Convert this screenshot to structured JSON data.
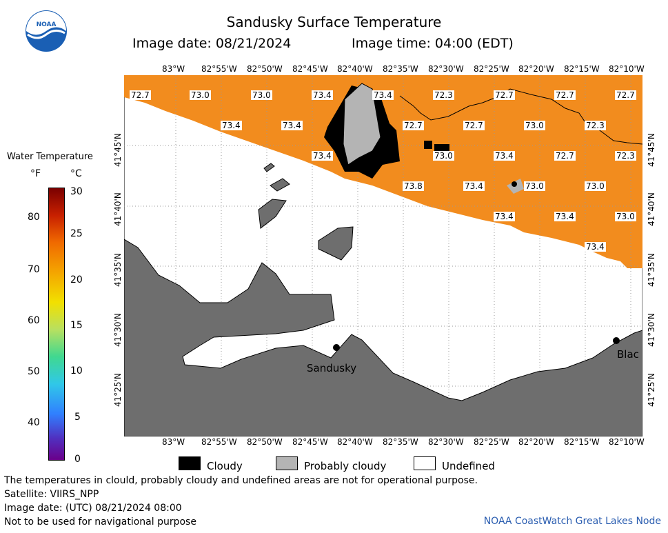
{
  "title": "Sandusky Surface Temperature",
  "image_date_label": "Image date: 08/21/2024",
  "image_time_label": "Image time: 04:00 (EDT)",
  "logo_text": "NOAA",
  "colorbar": {
    "title": "Water Temperature",
    "unit_f": "°F",
    "unit_c": "°C",
    "f_ticks": [
      "80",
      "70",
      "60",
      "50",
      "40"
    ],
    "c_ticks": [
      "30",
      "25",
      "20",
      "15",
      "10",
      "5",
      "0"
    ]
  },
  "longitude_labels": [
    "83°W",
    "82°55'W",
    "82°50'W",
    "82°45'W",
    "82°40'W",
    "82°35'W",
    "82°30'W",
    "82°25'W",
    "82°20'W",
    "82°15'W",
    "82°10'W"
  ],
  "latitude_labels": [
    "41°45'N",
    "41°40'N",
    "41°35'N",
    "41°30'N",
    "41°25'N"
  ],
  "temperature_labels": [
    {
      "text": "72.7",
      "lon": "83.06W",
      "lat": "41.805N"
    },
    {
      "text": "73.0",
      "lon": "82.98W",
      "lat": "41.805N"
    },
    {
      "text": "73.0",
      "lon": "82.87W",
      "lat": "41.805N"
    },
    {
      "text": "73.4",
      "lon": "82.76W",
      "lat": "41.805N"
    },
    {
      "text": "73.4",
      "lon": "82.63W",
      "lat": "41.805N"
    },
    {
      "text": "72.3",
      "lon": "82.48W",
      "lat": "41.805N"
    },
    {
      "text": "72.7",
      "lon": "82.37W",
      "lat": "41.805N"
    },
    {
      "text": "72.7",
      "lon": "82.23W",
      "lat": "41.805N"
    },
    {
      "text": "72.7",
      "lon": "82.12W",
      "lat": "41.805N"
    },
    {
      "text": "73.4",
      "lon": "82.93W",
      "lat": "41.765N"
    },
    {
      "text": "73.4",
      "lon": "82.83W",
      "lat": "41.765N"
    },
    {
      "text": "72.7",
      "lon": "82.54W",
      "lat": "41.765N"
    },
    {
      "text": "72.7",
      "lon": "82.45W",
      "lat": "41.765N"
    },
    {
      "text": "73.0",
      "lon": "82.33W",
      "lat": "41.765N"
    },
    {
      "text": "72.3",
      "lon": "82.22W",
      "lat": "41.765N"
    },
    {
      "text": "73.4",
      "lon": "82.75W",
      "lat": "41.725N"
    },
    {
      "text": "73.0",
      "lon": "82.49W",
      "lat": "41.725N"
    },
    {
      "text": "73.4",
      "lon": "82.40W",
      "lat": "41.725N"
    },
    {
      "text": "72.7",
      "lon": "82.28W",
      "lat": "41.725N"
    },
    {
      "text": "72.3",
      "lon": "82.17W",
      "lat": "41.725N"
    },
    {
      "text": "73.8",
      "lon": "82.57W",
      "lat": "41.69N"
    },
    {
      "text": "73.4",
      "lon": "82.46W",
      "lat": "41.69N"
    },
    {
      "text": "73.0",
      "lon": "82.34W",
      "lat": "41.69N"
    },
    {
      "text": "73.0",
      "lon": "82.22W",
      "lat": "41.69N"
    },
    {
      "text": "73.4",
      "lon": "82.40W",
      "lat": "41.645N"
    },
    {
      "text": "73.4",
      "lon": "82.29W",
      "lat": "41.645N"
    },
    {
      "text": "73.0",
      "lon": "82.17W",
      "lat": "41.645N"
    },
    {
      "text": "73.4",
      "lon": "82.21W",
      "lat": "41.605N"
    }
  ],
  "places": [
    "Sandusky",
    "Blac"
  ],
  "legend": {
    "cloudy": "Cloudy",
    "probably_cloudy": "Probably cloudy",
    "undefined": "Undefined"
  },
  "colors": {
    "water_temp": "#f28c1e",
    "land": "#6e6e6e",
    "cloud": "#000000",
    "probably_cloudy": "#b4b4b4",
    "undefined": "#ffffff",
    "credit": "#2a5db0"
  },
  "footer": {
    "line1": "The temperatures in clould, probably cloudy and undefined areas are not for operational purpose.",
    "line2": "Satellite: VIIRS_NPP",
    "line3": "Image date: (UTC) 08/21/2024  08:00",
    "line4": "Not to be used for navigational purpose",
    "credit": "NOAA CoastWatch Great Lakes Node"
  }
}
